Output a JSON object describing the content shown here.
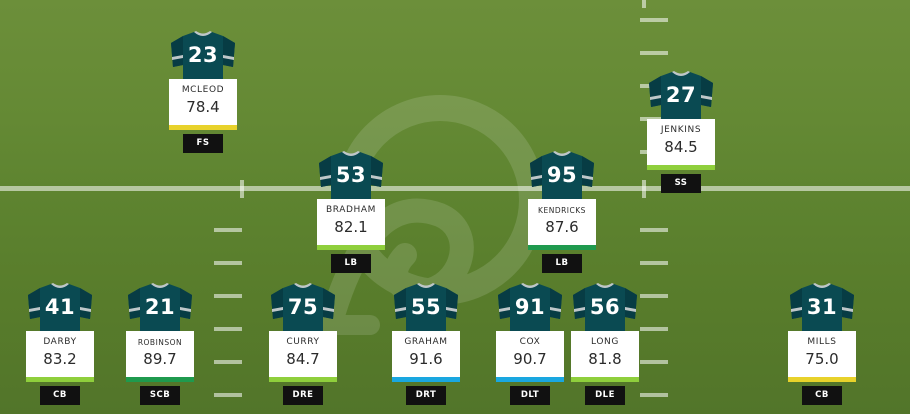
{
  "colors": {
    "jersey": "#0a4a52",
    "jersey_dark": "#073c44",
    "sleeve_stripe": "#bfc7c9",
    "grade_green": "#1f9a4e",
    "grade_lightgreen": "#8fcf3c",
    "grade_yellow": "#e8d22b",
    "grade_blue": "#1aa7e0"
  },
  "watermark_icon": "logo-watermark-icon",
  "players": [
    {
      "number": "23",
      "name": "MCLEOD",
      "grade": "78.4",
      "position": "FS",
      "bar": "grade_yellow"
    },
    {
      "number": "27",
      "name": "JENKINS",
      "grade": "84.5",
      "position": "SS",
      "bar": "grade_lightgreen"
    },
    {
      "number": "53",
      "name": "BRADHAM",
      "grade": "82.1",
      "position": "LB",
      "bar": "grade_lightgreen"
    },
    {
      "number": "95",
      "name": "KENDRICKS",
      "grade": "87.6",
      "position": "LB",
      "bar": "grade_green"
    },
    {
      "number": "41",
      "name": "DARBY",
      "grade": "83.2",
      "position": "CB",
      "bar": "grade_lightgreen"
    },
    {
      "number": "21",
      "name": "ROBINSON",
      "grade": "89.7",
      "position": "SCB",
      "bar": "grade_green"
    },
    {
      "number": "75",
      "name": "CURRY",
      "grade": "84.7",
      "position": "DRE",
      "bar": "grade_lightgreen"
    },
    {
      "number": "55",
      "name": "GRAHAM",
      "grade": "91.6",
      "position": "DRT",
      "bar": "grade_blue"
    },
    {
      "number": "91",
      "name": "COX",
      "grade": "90.7",
      "position": "DLT",
      "bar": "grade_blue"
    },
    {
      "number": "56",
      "name": "LONG",
      "grade": "81.8",
      "position": "DLE",
      "bar": "grade_lightgreen"
    },
    {
      "number": "31",
      "name": "MILLS",
      "grade": "75.0",
      "position": "CB",
      "bar": "grade_yellow"
    }
  ]
}
